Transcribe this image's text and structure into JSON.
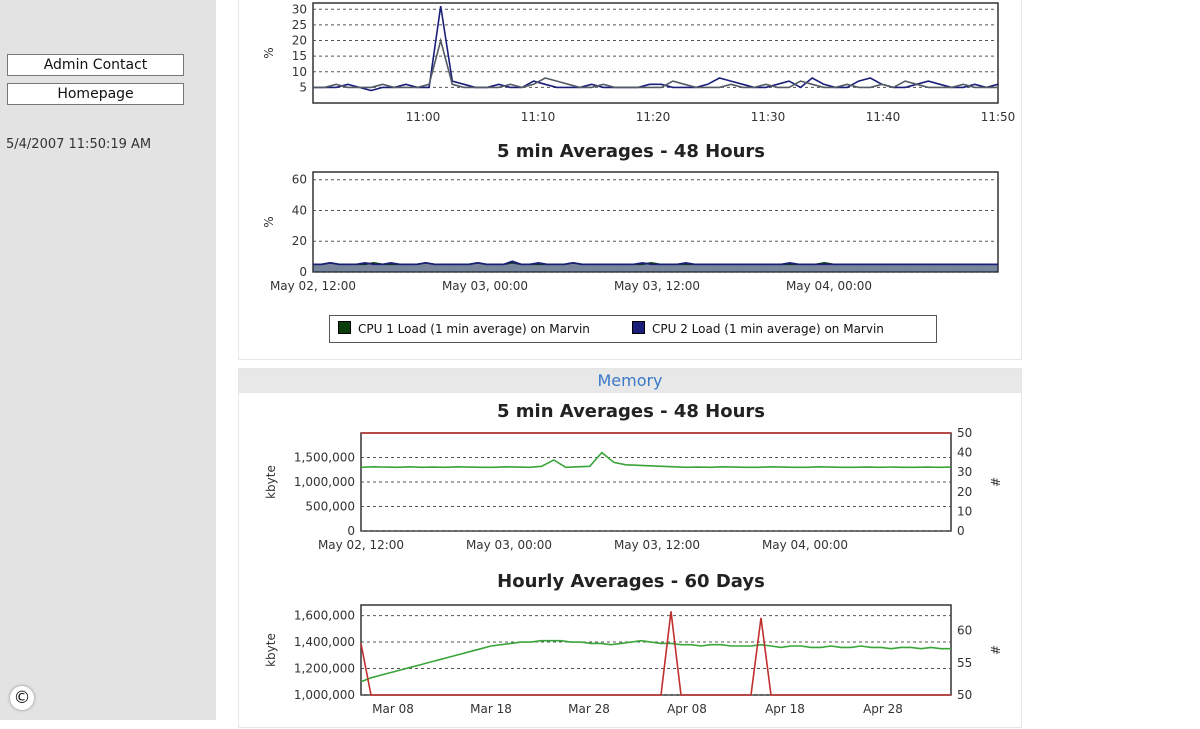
{
  "sidebar": {
    "admin_contact": "Admin Contact",
    "homepage": "Homepage",
    "timestamp": "5/4/2007 11:50:19 AM",
    "copyright_icon": "©"
  },
  "colors": {
    "cpu1": "#0b3d0b",
    "cpu2": "#1b1f7a",
    "mem_used": "#3aa53a",
    "mem_count": "#c0302e",
    "section": "#3a78c8"
  },
  "cpu": {
    "legend": {
      "cpu1": "CPU 1 Load (1 min average) on Marvin",
      "cpu2": "CPU 2 Load (1 min average) on Marvin"
    }
  },
  "memory": {
    "section_title": "Memory"
  },
  "chart_data": [
    {
      "id": "cpu-1min",
      "type": "line",
      "title": "",
      "ylabel": "%",
      "ylim": [
        0,
        32
      ],
      "yticks": [
        5,
        10,
        15,
        20,
        25,
        30
      ],
      "xticks": [
        "11:00",
        "11:10",
        "11:20",
        "11:30",
        "11:40",
        "11:50"
      ],
      "grid": true,
      "x": [
        0,
        1,
        2,
        3,
        4,
        5,
        6,
        7,
        8,
        9,
        10,
        11,
        12,
        13,
        14,
        15,
        16,
        17,
        18,
        19,
        20,
        21,
        22,
        23,
        24,
        25,
        26,
        27,
        28,
        29,
        30,
        31,
        32,
        33,
        34,
        35,
        36,
        37,
        38,
        39,
        40,
        41,
        42,
        43,
        44,
        45,
        46,
        47,
        48,
        49,
        50,
        51,
        52,
        53,
        54,
        55,
        56,
        57,
        58,
        59
      ],
      "series": [
        {
          "values": [
            5,
            5,
            5,
            6,
            5,
            4,
            5,
            5,
            6,
            5,
            5,
            31,
            7,
            6,
            5,
            5,
            6,
            5,
            5,
            7,
            6,
            5,
            5,
            5,
            6,
            5,
            5,
            5,
            5,
            6,
            6,
            5,
            5,
            5,
            6,
            8,
            7,
            6,
            5,
            5,
            6,
            7,
            5,
            8,
            6,
            5,
            5,
            7,
            8,
            6,
            5,
            5,
            6,
            7,
            6,
            5,
            5,
            6,
            5,
            6
          ]
        },
        {
          "values": [
            5,
            5,
            6,
            5,
            5,
            5,
            6,
            5,
            5,
            5,
            6,
            20,
            6,
            5,
            5,
            5,
            5,
            6,
            5,
            6,
            8,
            7,
            6,
            5,
            5,
            6,
            5,
            5,
            5,
            5,
            5,
            7,
            6,
            5,
            5,
            5,
            6,
            5,
            5,
            6,
            5,
            5,
            7,
            6,
            5,
            5,
            6,
            5,
            5,
            6,
            5,
            7,
            6,
            5,
            5,
            5,
            6,
            5,
            5,
            5
          ]
        }
      ]
    },
    {
      "id": "cpu-48h",
      "type": "area",
      "title": "5 min Averages - 48 Hours",
      "ylabel": "%",
      "ylim": [
        0,
        65
      ],
      "yticks": [
        0,
        20,
        40,
        60
      ],
      "xticks": [
        "May 02, 12:00",
        "May 03, 00:00",
        "May 03, 12:00",
        "May 04, 00:00"
      ],
      "grid": true,
      "x": [
        0,
        1,
        2,
        3,
        4,
        5,
        6,
        7,
        8,
        9,
        10,
        11,
        12,
        13,
        14,
        15,
        16,
        17,
        18,
        19,
        20,
        21,
        22,
        23,
        24,
        25,
        26,
        27,
        28,
        29,
        30,
        31,
        32,
        33,
        34,
        35,
        36,
        37,
        38,
        39,
        40,
        41,
        42,
        43,
        44,
        45,
        46,
        47,
        48,
        49,
        50,
        51,
        52,
        53,
        54,
        55,
        56,
        57,
        58,
        59,
        60,
        61,
        62,
        63,
        64,
        65,
        66,
        67,
        68,
        69,
        70,
        71,
        72,
        73,
        74,
        75,
        76,
        77,
        78,
        79
      ],
      "series": [
        {
          "name": "CPU 1 Load (1 min average) on Marvin",
          "values": [
            5,
            5,
            6,
            5,
            5,
            5,
            5,
            6,
            5,
            5,
            5,
            5,
            5,
            6,
            5,
            5,
            5,
            5,
            5,
            6,
            5,
            5,
            5,
            6,
            5,
            5,
            5,
            5,
            5,
            5,
            6,
            5,
            5,
            5,
            5,
            5,
            5,
            5,
            5,
            6,
            5,
            5,
            5,
            5,
            5,
            5,
            5,
            5,
            5,
            5,
            5,
            5,
            5,
            5,
            5,
            5,
            5,
            5,
            5,
            6,
            5,
            5,
            5,
            5,
            5,
            5,
            5,
            5,
            5,
            5,
            5,
            5,
            5,
            5,
            5,
            5,
            5,
            5,
            5,
            5
          ]
        },
        {
          "name": "CPU 2 Load (1 min average) on Marvin",
          "values": [
            5,
            5,
            6,
            5,
            5,
            5,
            6,
            5,
            5,
            6,
            5,
            5,
            5,
            6,
            5,
            5,
            5,
            5,
            5,
            6,
            5,
            5,
            5,
            7,
            5,
            5,
            6,
            5,
            5,
            5,
            6,
            5,
            5,
            5,
            5,
            5,
            5,
            5,
            6,
            5,
            5,
            5,
            5,
            6,
            5,
            5,
            5,
            5,
            5,
            5,
            5,
            5,
            5,
            5,
            5,
            6,
            5,
            5,
            5,
            5,
            5,
            5,
            5,
            5,
            5,
            5,
            5,
            5,
            5,
            5,
            5,
            5,
            5,
            5,
            5,
            5,
            5,
            5,
            5,
            5
          ]
        }
      ]
    },
    {
      "id": "mem-48h",
      "type": "line",
      "title": "5 min Averages - 48 Hours",
      "ylabel": "kbyte",
      "y2label": "#",
      "ylim": [
        0,
        2000000
      ],
      "yticks": [
        "0",
        "500,000",
        "1,000,000",
        "1,500,000"
      ],
      "y2lim": [
        0,
        50
      ],
      "y2ticks": [
        0,
        10,
        20,
        30,
        40,
        50
      ],
      "xticks": [
        "May 02, 12:00",
        "May 03, 00:00",
        "May 03, 12:00",
        "May 04, 00:00"
      ],
      "grid": true,
      "x": [
        0,
        1,
        2,
        3,
        4,
        5,
        6,
        7,
        8,
        9,
        10,
        11,
        12,
        13,
        14,
        15,
        16,
        17,
        18,
        19,
        20,
        21,
        22,
        23,
        24,
        25,
        26,
        27,
        28,
        29,
        30,
        31,
        32,
        33,
        34,
        35,
        36,
        37,
        38,
        39,
        40,
        41,
        42,
        43,
        44,
        45,
        46,
        47,
        48,
        49
      ],
      "series": [
        {
          "values": [
            1300000,
            1310000,
            1305000,
            1300000,
            1310000,
            1300000,
            1305000,
            1300000,
            1310000,
            1305000,
            1300000,
            1300000,
            1310000,
            1305000,
            1300000,
            1320000,
            1450000,
            1300000,
            1310000,
            1320000,
            1600000,
            1400000,
            1350000,
            1340000,
            1330000,
            1320000,
            1310000,
            1300000,
            1305000,
            1300000,
            1310000,
            1305000,
            1300000,
            1300000,
            1310000,
            1305000,
            1300000,
            1300000,
            1310000,
            1305000,
            1300000,
            1300000,
            1305000,
            1300000,
            1305000,
            1300000,
            1300000,
            1305000,
            1300000,
            1305000
          ]
        },
        {
          "values": [
            50,
            50,
            50,
            50,
            50,
            50,
            50,
            50,
            50,
            50,
            50,
            50,
            50,
            50,
            50,
            50,
            50,
            50,
            50,
            50,
            50,
            50,
            50,
            50,
            50,
            50,
            50,
            50,
            50,
            50,
            50,
            50,
            50,
            50,
            50,
            50,
            50,
            50,
            50,
            50,
            50,
            50,
            50,
            50,
            50,
            50,
            50,
            50,
            50,
            50
          ]
        }
      ]
    },
    {
      "id": "mem-60d",
      "type": "line",
      "title": "Hourly Averages - 60 Days",
      "ylabel": "kbyte",
      "y2label": "#",
      "ylim": [
        1000000,
        1680000
      ],
      "yticks": [
        "1,000,000",
        "1,200,000",
        "1,400,000",
        "1,600,000"
      ],
      "y2lim": [
        50,
        64
      ],
      "y2ticks": [
        50,
        55,
        60
      ],
      "xticks": [
        "Mar 08",
        "Mar 18",
        "Mar 28",
        "Apr 08",
        "Apr 18",
        "Apr 28"
      ],
      "grid": true,
      "x": [
        0,
        1,
        2,
        3,
        4,
        5,
        6,
        7,
        8,
        9,
        10,
        11,
        12,
        13,
        14,
        15,
        16,
        17,
        18,
        19,
        20,
        21,
        22,
        23,
        24,
        25,
        26,
        27,
        28,
        29,
        30,
        31,
        32,
        33,
        34,
        35,
        36,
        37,
        38,
        39,
        40,
        41,
        42,
        43,
        44,
        45,
        46,
        47,
        48,
        49,
        50,
        51,
        52,
        53,
        54,
        55,
        56,
        57,
        58,
        59
      ],
      "series": [
        {
          "values": [
            1100000,
            1130000,
            1150000,
            1170000,
            1190000,
            1210000,
            1230000,
            1250000,
            1270000,
            1290000,
            1310000,
            1330000,
            1350000,
            1370000,
            1380000,
            1390000,
            1400000,
            1400000,
            1410000,
            1410000,
            1410000,
            1400000,
            1400000,
            1390000,
            1390000,
            1380000,
            1390000,
            1400000,
            1410000,
            1400000,
            1390000,
            1390000,
            1380000,
            1380000,
            1370000,
            1380000,
            1380000,
            1370000,
            1370000,
            1370000,
            1380000,
            1370000,
            1360000,
            1370000,
            1370000,
            1360000,
            1360000,
            1370000,
            1360000,
            1360000,
            1370000,
            1360000,
            1360000,
            1350000,
            1360000,
            1360000,
            1350000,
            1360000,
            1350000,
            1350000
          ]
        },
        {
          "values": [
            58,
            50,
            50,
            50,
            50,
            50,
            50,
            50,
            50,
            50,
            50,
            50,
            50,
            50,
            50,
            50,
            50,
            50,
            50,
            50,
            50,
            50,
            50,
            50,
            50,
            50,
            50,
            50,
            50,
            50,
            50,
            63,
            50,
            50,
            50,
            50,
            50,
            50,
            50,
            50,
            62,
            50,
            50,
            50,
            50,
            50,
            50,
            50,
            50,
            50,
            50,
            50,
            50,
            50,
            50,
            50,
            50,
            50,
            50,
            50
          ]
        }
      ]
    }
  ]
}
